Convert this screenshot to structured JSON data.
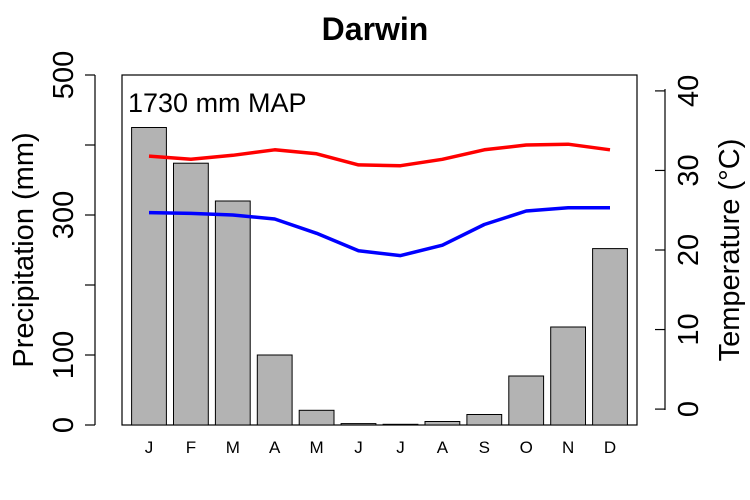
{
  "chart_data": {
    "type": "bar",
    "title": "Darwin",
    "annotation": "1730 mm MAP",
    "categories": [
      "J",
      "F",
      "M",
      "A",
      "M",
      "J",
      "J",
      "A",
      "S",
      "O",
      "N",
      "D"
    ],
    "precipitation": {
      "ylabel": "Precipitation (mm)",
      "ylim": [
        0,
        500
      ],
      "ticks": [
        0,
        100,
        300,
        500
      ],
      "values": [
        425,
        374,
        320,
        100,
        21,
        2,
        1,
        5,
        15,
        70,
        140,
        252
      ],
      "color": "#b3b3b3"
    },
    "temperature": {
      "ylabel": "Temperature (°C)",
      "ylim": [
        -2,
        42
      ],
      "ticks": [
        0,
        10,
        20,
        30,
        40
      ],
      "series": [
        {
          "values": [
            31.8,
            31.4,
            31.9,
            32.6,
            32.1,
            30.7,
            30.6,
            31.4,
            32.6,
            33.2,
            33.3,
            32.6
          ],
          "color": "#ff0000"
        },
        {
          "values": [
            24.7,
            24.6,
            24.4,
            23.9,
            22.1,
            19.9,
            19.3,
            20.6,
            23.2,
            24.9,
            25.3,
            25.3
          ],
          "color": "#0000ff"
        }
      ]
    }
  }
}
